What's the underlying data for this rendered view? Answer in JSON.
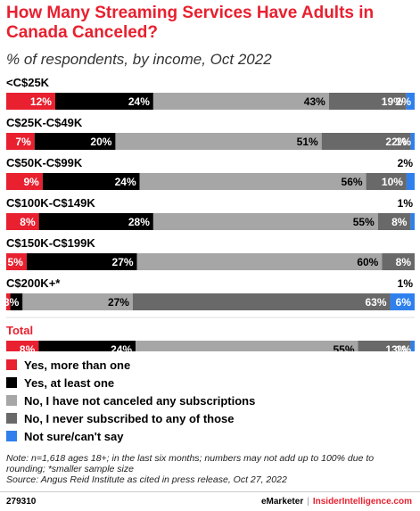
{
  "title": "How Many Streaming Services Have Adults in Canada Canceled?",
  "subtitle": "% of respondents, by income, Oct 2022",
  "colors": {
    "yes_more": "#e8202f",
    "yes_one": "#000000",
    "no_canceled": "#a6a6a6",
    "no_subscribed": "#696969",
    "not_sure": "#2f80ed",
    "title": "#e8202f"
  },
  "chart_data": {
    "type": "bar",
    "orientation": "horizontal",
    "stacked": true,
    "categories": [
      "<C$25K",
      "C$25K-C$49K",
      "C$50K-C$99K",
      "C$100K-C$149K",
      "C$150K-C$199K",
      "C$200K+*",
      "Total"
    ],
    "series": [
      {
        "name": "Yes, more than one",
        "values": [
          12,
          7,
          9,
          8,
          5,
          1,
          8
        ],
        "labels": [
          "12%",
          "7%",
          "9%",
          "8%",
          "5%",
          "",
          "8%"
        ]
      },
      {
        "name": "Yes, at least one",
        "values": [
          24,
          20,
          24,
          28,
          27,
          3,
          24
        ],
        "labels": [
          "24%",
          "20%",
          "24%",
          "28%",
          "27%",
          "3%",
          "24%"
        ]
      },
      {
        "name": "No, I have not canceled any subscriptions",
        "values": [
          43,
          51,
          56,
          55,
          60,
          27,
          55
        ],
        "labels": [
          "43%",
          "51%",
          "56%",
          "55%",
          "60%",
          "27%",
          "55%"
        ]
      },
      {
        "name": "No, I never subscribed to any of those",
        "values": [
          19,
          22,
          10,
          8,
          8,
          63,
          13
        ],
        "labels": [
          "19%",
          "22%",
          "10%",
          "8%",
          "8%",
          "63%",
          "13%"
        ]
      },
      {
        "name": "Not sure/can't say",
        "values": [
          2,
          1,
          2,
          1,
          0,
          6,
          1
        ],
        "labels": [
          "2%",
          "1%",
          "",
          "",
          "",
          "6%",
          "1%"
        ]
      }
    ],
    "above_labels": [
      "",
      "",
      "2%",
      "1%",
      "",
      "1%",
      ""
    ],
    "total_highlighted": true
  },
  "legend": [
    {
      "label": "Yes, more than one",
      "color": "#e8202f"
    },
    {
      "label": "Yes, at least one",
      "color": "#000000"
    },
    {
      "label": "No, I have not canceled any subscriptions",
      "color": "#a6a6a6"
    },
    {
      "label": "No, I never subscribed to any of those",
      "color": "#696969"
    },
    {
      "label": "Not sure/can't say",
      "color": "#2f80ed"
    }
  ],
  "note": "Note: n=1,618 ages 18+; in the last six months; numbers may not add up to 100% due to rounding; *smaller sample size",
  "source": "Source: Angus Reid Institute as cited in press release, Oct 27, 2022",
  "footer": {
    "chart_id": "279310",
    "brand1": "eMarketer",
    "separator": "|",
    "brand2": "InsiderIntelligence.com"
  }
}
